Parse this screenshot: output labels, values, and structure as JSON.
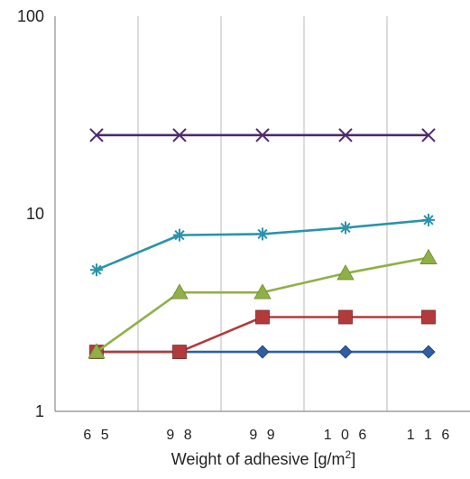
{
  "chart_data": {
    "type": "line",
    "categories": [
      "6 5",
      "9 8",
      "9 9",
      "1 0 6",
      "1 1 6"
    ],
    "xlabel": "Weight of adhesive [g/m²]",
    "xlabel_main": "Weight of adhesive [g/m",
    "xlabel_sup": "2",
    "xlabel_end": "]",
    "ylabel": "",
    "yscale": "log",
    "ylim": [
      1,
      100
    ],
    "yticks": [
      1,
      10,
      100
    ],
    "ytick_labels": [
      "1",
      "10",
      "100"
    ],
    "grid": "vertical",
    "series": [
      {
        "values": [
          2,
          2,
          2,
          2,
          2
        ],
        "color": "#2e5fa3",
        "marker": "diamond"
      },
      {
        "values": [
          2,
          2,
          3,
          3,
          3
        ],
        "color": "#b33a3a",
        "marker": "square"
      },
      {
        "values": [
          2,
          4,
          4,
          5,
          6
        ],
        "color": "#8fb046",
        "marker": "triangle"
      },
      {
        "values": [
          5.2,
          7.8,
          7.9,
          8.5,
          9.3
        ],
        "color": "#2b93ab",
        "marker": "asterisk"
      },
      {
        "values": [
          25,
          25,
          25,
          25,
          25
        ],
        "color": "#4e2a6e",
        "marker": "x"
      }
    ]
  }
}
